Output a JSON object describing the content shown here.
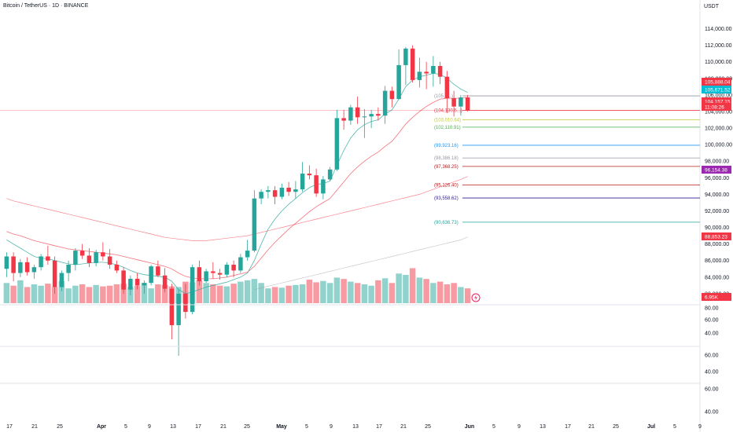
{
  "header": {
    "title": "Bitcoin / TetherUS · 1D · BINANCE",
    "currency": "USDT"
  },
  "price_axis": {
    "ticks": [
      "114,000.00",
      "112,000.00",
      "110,000.00",
      "108,000.00",
      "106,000.00",
      "104,000.00",
      "102,000.00",
      "100,000.00",
      "98,000.00",
      "96,000.00",
      "94,000.00",
      "92,000.00",
      "90,000.00",
      "88,000.00",
      "86,000.00",
      "84,000.00",
      "82,000.00"
    ]
  },
  "pane_axes": [
    {
      "ticks": [
        "80.00",
        "60.00",
        "40.00"
      ]
    },
    {
      "ticks": [
        "60.00",
        "40.00"
      ]
    },
    {
      "ticks": [
        "60.00",
        "40.00"
      ]
    }
  ],
  "time_axis": {
    "labels": [
      {
        "text": "17",
        "bold": false
      },
      {
        "text": "21",
        "bold": false
      },
      {
        "text": "25",
        "bold": false
      },
      {
        "text": "Apr",
        "bold": true
      },
      {
        "text": "5",
        "bold": false
      },
      {
        "text": "9",
        "bold": false
      },
      {
        "text": "13",
        "bold": false
      },
      {
        "text": "17",
        "bold": false
      },
      {
        "text": "21",
        "bold": false
      },
      {
        "text": "25",
        "bold": false
      },
      {
        "text": "May",
        "bold": true
      },
      {
        "text": "5",
        "bold": false
      },
      {
        "text": "9",
        "bold": false
      },
      {
        "text": "13",
        "bold": false
      },
      {
        "text": "17",
        "bold": false
      },
      {
        "text": "21",
        "bold": false
      },
      {
        "text": "25",
        "bold": false
      },
      {
        "text": "Jun",
        "bold": true
      },
      {
        "text": "5",
        "bold": false
      },
      {
        "text": "9",
        "bold": false
      },
      {
        "text": "13",
        "bold": false
      },
      {
        "text": "17",
        "bold": false
      },
      {
        "text": "21",
        "bold": false
      },
      {
        "text": "25",
        "bold": false
      },
      {
        "text": "Jul",
        "bold": true
      },
      {
        "text": "5",
        "bold": false
      },
      {
        "text": "9",
        "bold": false
      }
    ]
  },
  "levels": [
    {
      "text": "(105,8...)",
      "price": 105888,
      "color": "#9598a1"
    },
    {
      "text": "(104,130.5...)",
      "price": 104130,
      "color": "#f23645"
    },
    {
      "text": "(103,010.64)",
      "price": 103010,
      "color": "#c0ca33"
    },
    {
      "text": "(102,110.91)",
      "price": 102111,
      "color": "#4caf50"
    },
    {
      "text": "(99,923.16)",
      "price": 99923,
      "color": "#2196f3"
    },
    {
      "text": "(98,386.18)",
      "price": 98386,
      "color": "#9598a1"
    },
    {
      "text": "(97,368.25)",
      "price": 97368,
      "color": "#b71c1c"
    },
    {
      "text": "(95,126.40)",
      "price": 95126,
      "color": "#b71c1c"
    },
    {
      "text": "(93,558.62)",
      "price": 93558,
      "color": "#311b92"
    },
    {
      "text": "(90,636.73)",
      "price": 90636,
      "color": "#26a69a"
    }
  ],
  "badges": [
    {
      "text": "105,888.04",
      "price": 105888,
      "color": "#f23645"
    },
    {
      "text": "105,671.52",
      "price": 105671,
      "color": "#00bcd4"
    },
    {
      "text": "104,157.15",
      "price": 104157,
      "color": "#f23645"
    },
    {
      "text": "11:08:26",
      "price": 104157,
      "color": "#f23645"
    },
    {
      "text": "96,154.38",
      "price": 96154,
      "color": "#9c27b0"
    },
    {
      "text": "88,853.23",
      "price": 88853,
      "color": "#f23645"
    },
    {
      "text": "6.95K",
      "price": 0,
      "color": "#f23645"
    }
  ],
  "colors": {
    "up": "#26a69a",
    "down": "#f23645",
    "ema_fast": "#26a69a",
    "ema_slow": "#f23645",
    "sma_long": "#f23645",
    "grid": "#f0f3fa"
  },
  "chart_data": {
    "type": "candlestick",
    "price_range": [
      80000,
      115000
    ],
    "candles": [
      [
        85000,
        87000,
        84000,
        86500
      ],
      [
        86500,
        87000,
        83500,
        84500
      ],
      [
        84500,
        86200,
        84000,
        85800
      ],
      [
        85800,
        86400,
        84200,
        84600
      ],
      [
        84600,
        85500,
        83800,
        85200
      ],
      [
        85200,
        86800,
        84800,
        86500
      ],
      [
        86500,
        87800,
        85500,
        86000
      ],
      [
        86000,
        86500,
        82000,
        82800
      ],
      [
        82800,
        84800,
        82300,
        84500
      ],
      [
        84500,
        86000,
        83500,
        85500
      ],
      [
        85500,
        87500,
        84800,
        87200
      ],
      [
        87200,
        88000,
        86200,
        86600
      ],
      [
        86600,
        87500,
        85200,
        85700
      ],
      [
        85700,
        87300,
        85300,
        87000
      ],
      [
        87000,
        88200,
        86000,
        86500
      ],
      [
        86500,
        87400,
        85000,
        85500
      ],
      [
        85500,
        86000,
        84500,
        84800
      ],
      [
        84800,
        85200,
        82000,
        82500
      ],
      [
        82500,
        84200,
        81800,
        83800
      ],
      [
        83800,
        84500,
        82500,
        83000
      ],
      [
        83000,
        83600,
        82000,
        83300
      ],
      [
        83300,
        85500,
        83000,
        85300
      ],
      [
        85300,
        86000,
        84000,
        84200
      ],
      [
        84200,
        85100,
        82200,
        82600
      ],
      [
        82600,
        83200,
        76500,
        78200
      ],
      [
        78200,
        82500,
        74500,
        82000
      ],
      [
        82000,
        83200,
        79000,
        79800
      ],
      [
        79800,
        85500,
        79500,
        85200
      ],
      [
        85200,
        86000,
        83000,
        83500
      ],
      [
        83500,
        85000,
        83300,
        84700
      ],
      [
        84700,
        85800,
        83800,
        84500
      ],
      [
        84500,
        85000,
        83700,
        84300
      ],
      [
        84300,
        85800,
        84000,
        85500
      ],
      [
        85500,
        86000,
        84000,
        84800
      ],
      [
        84800,
        86800,
        84500,
        86400
      ],
      [
        86400,
        88500,
        86000,
        87200
      ],
      [
        87200,
        94500,
        87000,
        93500
      ],
      [
        93500,
        94600,
        92800,
        94300
      ],
      [
        94300,
        95000,
        93500,
        94500
      ],
      [
        94500,
        95000,
        92800,
        93700
      ],
      [
        93700,
        95300,
        93400,
        94800
      ],
      [
        94800,
        95500,
        93800,
        94300
      ],
      [
        94300,
        95600,
        93500,
        94600
      ],
      [
        94600,
        97900,
        94300,
        96500
      ],
      [
        96500,
        97500,
        95800,
        96300
      ],
      [
        96300,
        97100,
        93700,
        94100
      ],
      [
        94100,
        96200,
        93400,
        95800
      ],
      [
        95800,
        97300,
        95600,
        97000
      ],
      [
        97000,
        104200,
        96800,
        103200
      ],
      [
        103200,
        104200,
        101800,
        102900
      ],
      [
        102900,
        104800,
        102400,
        104500
      ],
      [
        104500,
        105800,
        102500,
        103300
      ],
      [
        103300,
        104300,
        100800,
        103400
      ],
      [
        103400,
        104200,
        102000,
        103700
      ],
      [
        103700,
        104500,
        102900,
        103500
      ],
      [
        103500,
        107100,
        102500,
        106500
      ],
      [
        106500,
        107000,
        104500,
        105500
      ],
      [
        105500,
        111500,
        105500,
        109600
      ],
      [
        109600,
        111800,
        107200,
        111600
      ],
      [
        111600,
        112000,
        107500,
        107800
      ],
      [
        107800,
        110500,
        106900,
        108800
      ],
      [
        108800,
        110000,
        106700,
        108600
      ],
      [
        108600,
        110700,
        107000,
        109500
      ],
      [
        109500,
        110000,
        107300,
        108200
      ],
      [
        108200,
        108900,
        103800,
        105600
      ],
      [
        105600,
        106500,
        103400,
        104600
      ],
      [
        104600,
        106000,
        103500,
        105700
      ],
      [
        105700,
        106000,
        104000,
        104150
      ]
    ],
    "volume": {
      "values": [
        30,
        26,
        34,
        24,
        28,
        26,
        29,
        24,
        33,
        22,
        26,
        28,
        24,
        27,
        25,
        26,
        28,
        29,
        24,
        26,
        30,
        22,
        28,
        27,
        25,
        24,
        32,
        31,
        34,
        30,
        28,
        26,
        25,
        29,
        32,
        34,
        36,
        30,
        22,
        24,
        23,
        26,
        27,
        28,
        35,
        31,
        33,
        30,
        38,
        36,
        32,
        30,
        28,
        26,
        34,
        37,
        30,
        44,
        42,
        52,
        38,
        36,
        30,
        32,
        28,
        30,
        24,
        22
      ],
      "max": 70
    },
    "ema_fast": [
      88500,
      88000,
      87500,
      87000,
      86500,
      86300,
      86200,
      86000,
      85800,
      85600,
      85500,
      85600,
      85700,
      85800,
      85800,
      85700,
      85500,
      85200,
      84800,
      84500,
      84300,
      84200,
      84100,
      84000,
      83500,
      82500,
      82000,
      82200,
      82500,
      82800,
      83000,
      83200,
      83400,
      83700,
      84000,
      84500,
      86000,
      88000,
      89800,
      91000,
      92000,
      92800,
      93500,
      94200,
      94800,
      95200,
      95300,
      95600,
      97500,
      99300,
      100800,
      101800,
      102400,
      102800,
      103000,
      103700,
      104200,
      105500,
      107000,
      107800,
      108200,
      108400,
      108600,
      108500,
      108000,
      107300,
      106700,
      106300
    ],
    "ema_slow": [
      89500,
      89200,
      89000,
      88700,
      88400,
      88200,
      88000,
      87800,
      87600,
      87400,
      87300,
      87200,
      87100,
      87000,
      86900,
      86800,
      86700,
      86500,
      86300,
      86100,
      85900,
      85700,
      85500,
      85300,
      85000,
      84500,
      84100,
      83900,
      83800,
      83800,
      83800,
      83900,
      84000,
      84200,
      84400,
      84600,
      85300,
      86300,
      87300,
      88200,
      89000,
      89800,
      90500,
      91200,
      91900,
      92500,
      93000,
      93500,
      94500,
      95500,
      96500,
      97300,
      98000,
      98600,
      99100,
      99800,
      100400,
      101400,
      102500,
      103300,
      104000,
      104600,
      105100,
      105500,
      105600,
      105600,
      105600,
      105700
    ],
    "sma_long": [
      93500,
      93200,
      93000,
      92800,
      92600,
      92400,
      92200,
      92000,
      91800,
      91600,
      91400,
      91200,
      91000,
      90800,
      90600,
      90400,
      90200,
      90000,
      89800,
      89600,
      89400,
      89200,
      89000,
      88800,
      88700,
      88600,
      88500,
      88400,
      88400,
      88400,
      88500,
      88600,
      88700,
      88800,
      88900,
      89000,
      89200,
      89400,
      89600,
      89800,
      90000,
      90200,
      90400,
      90600,
      90800,
      91000,
      91200,
      91400,
      91600,
      91800,
      92000,
      92200,
      92400,
      92600,
      92800,
      93000,
      93200,
      93400,
      93600,
      93800,
      94000,
      94300,
      94600,
      94900,
      95200,
      95500,
      95800,
      96150
    ],
    "sma_200": [
      0,
      0,
      0,
      0,
      0,
      0,
      0,
      0,
      0,
      0,
      0,
      0,
      0,
      0,
      0,
      0,
      0,
      0,
      0,
      0,
      0,
      0,
      0,
      0,
      0,
      0,
      0,
      0,
      0,
      0,
      0,
      0,
      0,
      0,
      0,
      0,
      82500,
      82700,
      82900,
      83100,
      83300,
      83500,
      83700,
      83900,
      84100,
      84300,
      84500,
      84700,
      84900,
      85100,
      85300,
      85500,
      85700,
      85900,
      86100,
      86300,
      86500,
      86700,
      86900,
      87100,
      87300,
      87500,
      87700,
      87900,
      88100,
      88300,
      88500,
      88850
    ]
  }
}
